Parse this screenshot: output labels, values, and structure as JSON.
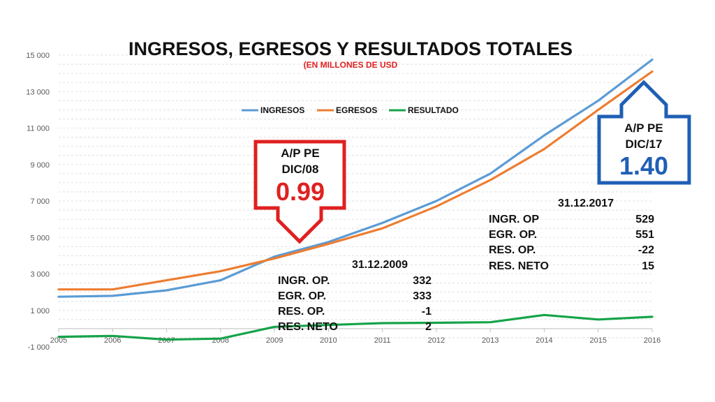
{
  "chart_data": {
    "type": "line",
    "title": "INGRESOS, EGRESOS Y RESULTADOS TOTALES",
    "subtitle": "(EN MILLONES DE USD",
    "x": [
      2005,
      2006,
      2007,
      2008,
      2009,
      2010,
      2011,
      2012,
      2013,
      2014,
      2015,
      2016
    ],
    "y_ticks": [
      "15 000",
      "13 000",
      "11 000",
      "9 000",
      "7 000",
      "5 000",
      "3 000",
      "1 000",
      "-1 000"
    ],
    "ylim": [
      -1000,
      15000
    ],
    "grid": true,
    "legend_position": "top-center",
    "series": [
      {
        "name": "INGRESOS",
        "color": "#5b9bd5",
        "values": [
          1750,
          1800,
          2100,
          2650,
          3950,
          4750,
          5800,
          7000,
          8500,
          10600,
          12500,
          14750
        ]
      },
      {
        "name": "EGRESOS",
        "color": "#ed7d31",
        "values": [
          2150,
          2150,
          2650,
          3150,
          3850,
          4650,
          5500,
          6700,
          8150,
          9850,
          12000,
          14100
        ]
      },
      {
        "name": "RESULTADO",
        "color": "#16a34a",
        "values": [
          -450,
          -400,
          -600,
          -550,
          100,
          200,
          300,
          320,
          350,
          750,
          500,
          650
        ]
      }
    ],
    "annotations": {
      "callout_2008": {
        "line1": "A/P PE",
        "line2": "DIC/08",
        "value": "0.99",
        "color": "#e02020"
      },
      "callout_2017": {
        "line1": "A/P PE",
        "line2": "DIC/17",
        "value": "1.40",
        "color": "#1f5fb4"
      },
      "table_2009": {
        "date": "31.12.2009",
        "rows": [
          {
            "label": "INGR. OP.",
            "value": "332"
          },
          {
            "label": "EGR. OP.",
            "value": "333"
          },
          {
            "label": "RES. OP.",
            "value": "-1"
          },
          {
            "label": "RES. NETO",
            "value": "2"
          }
        ]
      },
      "table_2017": {
        "date": "31.12.2017",
        "rows": [
          {
            "label": "INGR. OP",
            "value": "529"
          },
          {
            "label": "EGR. OP.",
            "value": "551"
          },
          {
            "label": "RES. OP.",
            "value": "-22"
          },
          {
            "label": "RES. NETO",
            "value": "15"
          }
        ]
      }
    }
  }
}
